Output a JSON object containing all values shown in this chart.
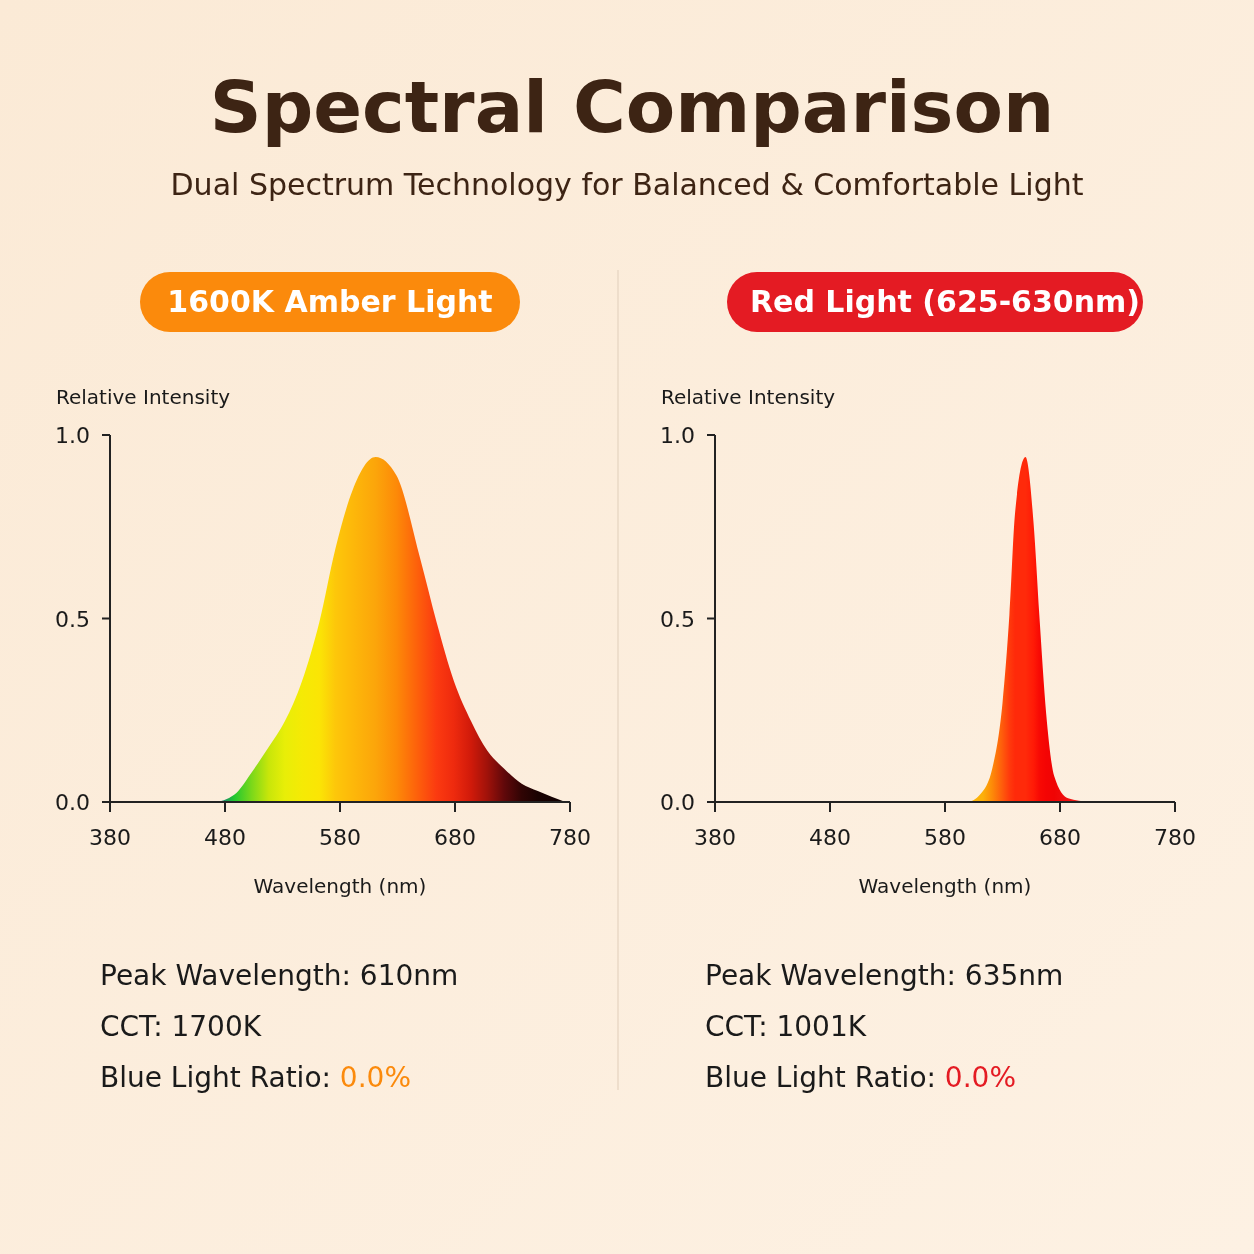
{
  "chart_data": [
    {
      "type": "area",
      "title": "Spectral Comparison",
      "subtitle": "Dual Spectrum Technology for Balanced & Comfortable Light",
      "xlabel": "Wavelength (nm)",
      "ylabel": "Relative Intensity",
      "xlim": [
        380,
        780
      ],
      "xticks": [
        380,
        480,
        580,
        680,
        780
      ],
      "ylim": [
        0,
        1
      ],
      "yticks": [
        {
          "value": 0,
          "label": "0.0"
        },
        {
          "value": 0.5,
          "label": "0.5"
        },
        {
          "value": 1,
          "label": "1.0"
        }
      ],
      "series": [
        {
          "name": "1600K Amber Light",
          "color": "#fb8a0c",
          "x": [
            400,
            470,
            488,
            503,
            518,
            532,
            547,
            562,
            576,
            591,
            611,
            629,
            650,
            664,
            679,
            694,
            708,
            723,
            738,
            752,
            776
          ],
          "values": [
            0,
            0,
            0.02,
            0.08,
            0.15,
            0.22,
            0.33,
            0.49,
            0.69,
            0.85,
            0.94,
            0.89,
            0.66,
            0.49,
            0.33,
            0.22,
            0.14,
            0.09,
            0.05,
            0.03,
            0
          ],
          "colors": [
            "#1a237e",
            "#1a4fa0",
            "#22c830",
            "#7ad81a",
            "#c8e60a",
            "#e8ee08",
            "#f5ea05",
            "#fbe505",
            "#fdc70a",
            "#fdb80a",
            "#fca50a",
            "#fd8a08",
            "#fd5a0c",
            "#fb3a10",
            "#ee2a0e",
            "#d01a0a",
            "#a0120a",
            "#60080a",
            "#300404",
            "#1a0202",
            "#100101"
          ]
        }
      ],
      "annotations": [
        "Peak Wavelength: 610nm",
        "CCT: 1700K",
        "Blue Light Ratio: 0.0%"
      ]
    },
    {
      "type": "area",
      "xlabel": "Wavelength (nm)",
      "ylabel": "Relative Intensity",
      "xlim": [
        380,
        780
      ],
      "xticks": [
        380,
        480,
        580,
        680,
        780
      ],
      "ylim": [
        0,
        1
      ],
      "yticks": [
        {
          "value": 0,
          "label": "0.0"
        },
        {
          "value": 0.5,
          "label": "0.5"
        },
        {
          "value": 1,
          "label": "1.0"
        }
      ],
      "series": [
        {
          "name": "Red Light (625-630nm)",
          "color": "#e41b23",
          "x": [
            400,
            599,
            613,
            621,
            630,
            636,
            641,
            650,
            657,
            662,
            668,
            675,
            687,
            706
          ],
          "values": [
            0,
            0,
            0.03,
            0.09,
            0.27,
            0.51,
            0.79,
            0.94,
            0.76,
            0.51,
            0.24,
            0.07,
            0.01,
            0
          ],
          "colors": [
            "#1a237e",
            "#fdb80a",
            "#fcb00a",
            "#fd8a08",
            "#fe5a0c",
            "#ff3a0c",
            "#ff2a0a",
            "#ff2a0a",
            "#ff1a06",
            "#f80a04",
            "#f40404",
            "#f00404",
            "#f01010",
            "#f04030"
          ]
        }
      ],
      "annotations": [
        "Peak Wavelength: 635nm",
        "CCT: 1001K",
        "Blue Light Ratio: 0.0%"
      ]
    }
  ]
}
